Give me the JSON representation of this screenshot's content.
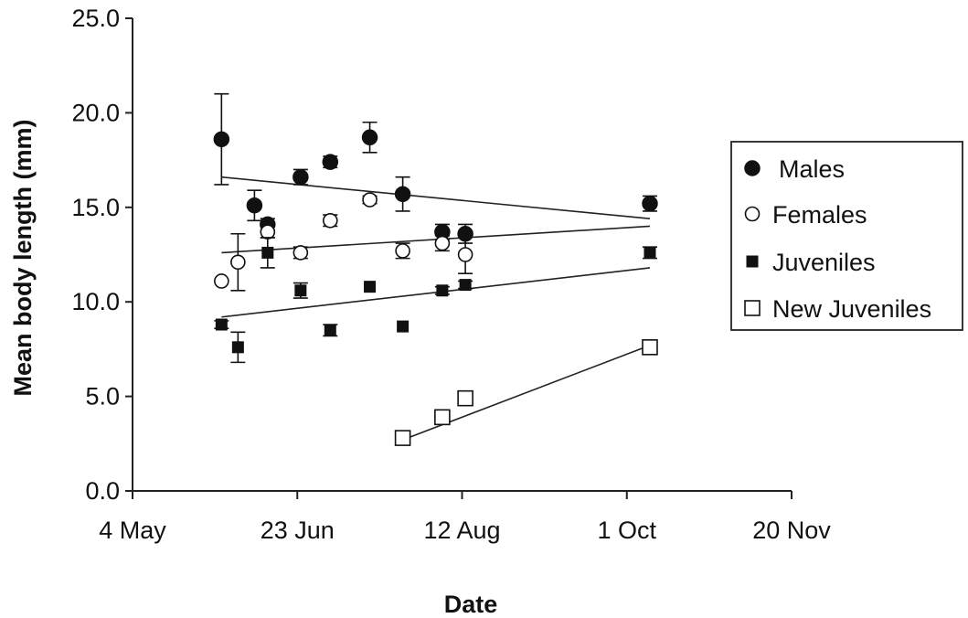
{
  "chart_data": {
    "type": "scatter",
    "xlabel": "Date",
    "ylabel": "Mean body length (mm)",
    "x_ticks": [
      "4 May",
      "23 Jun",
      "12 Aug",
      "1 Oct",
      "20 Nov"
    ],
    "y_ticks": [
      "0.0",
      "5.0",
      "10.0",
      "15.0",
      "20.0",
      "25.0"
    ],
    "x_tick_dates": [
      "May 4",
      "Jun 23",
      "Aug 12",
      "Oct 1",
      "Nov 20"
    ],
    "xlim": [
      "May 4",
      "Nov 20"
    ],
    "ylim": [
      0,
      25
    ],
    "legend_position": "right",
    "series": [
      {
        "name": "Males",
        "marker": "filled-circle",
        "points": [
          {
            "x": "May 31",
            "y": 18.6,
            "err": 2.4
          },
          {
            "x": "Jun 10",
            "y": 15.1,
            "err": 0.8
          },
          {
            "x": "Jun 14",
            "y": 14.1,
            "err": 0.3
          },
          {
            "x": "Jun 24",
            "y": 16.6,
            "err": 0.4
          },
          {
            "x": "Jul 3",
            "y": 17.4,
            "err": 0.3
          },
          {
            "x": "Jul 15",
            "y": 18.7,
            "err": 0.8
          },
          {
            "x": "Jul 25",
            "y": 15.7,
            "err": 0.9
          },
          {
            "x": "Aug 6",
            "y": 13.7,
            "err": 0.4
          },
          {
            "x": "Aug 13",
            "y": 13.6,
            "err": 0.5
          },
          {
            "x": "Oct 8",
            "y": 15.2,
            "err": 0.4
          }
        ],
        "trend": [
          {
            "x": "May 31",
            "y": 16.6
          },
          {
            "x": "Oct 8",
            "y": 14.4
          }
        ]
      },
      {
        "name": "Females",
        "marker": "open-circle",
        "points": [
          {
            "x": "May 31",
            "y": 11.1,
            "err": 0
          },
          {
            "x": "Jun 5",
            "y": 12.1,
            "err": 1.5
          },
          {
            "x": "Jun 14",
            "y": 13.7,
            "err": 0.3
          },
          {
            "x": "Jun 24",
            "y": 12.6,
            "err": 0.3
          },
          {
            "x": "Jul 3",
            "y": 14.3,
            "err": 0.3
          },
          {
            "x": "Jul 15",
            "y": 15.4,
            "err": 0.2
          },
          {
            "x": "Jul 25",
            "y": 12.7,
            "err": 0.4
          },
          {
            "x": "Aug 6",
            "y": 13.1,
            "err": 0.4
          },
          {
            "x": "Aug 13",
            "y": 12.5,
            "err": 1.0
          }
        ],
        "trend": [
          {
            "x": "May 31",
            "y": 12.6
          },
          {
            "x": "Oct 8",
            "y": 14.0
          }
        ]
      },
      {
        "name": "Juveniles",
        "marker": "filled-square",
        "points": [
          {
            "x": "May 31",
            "y": 8.8,
            "err": 0.2
          },
          {
            "x": "Jun 5",
            "y": 7.6,
            "err": 0.8
          },
          {
            "x": "Jun 14",
            "y": 12.6,
            "err": 0.8
          },
          {
            "x": "Jun 24",
            "y": 10.6,
            "err": 0.4
          },
          {
            "x": "Jul 3",
            "y": 8.5,
            "err": 0.3
          },
          {
            "x": "Jul 15",
            "y": 10.8,
            "err": 0.1
          },
          {
            "x": "Jul 25",
            "y": 8.7,
            "err": 0.1
          },
          {
            "x": "Aug 6",
            "y": 10.6,
            "err": 0.2
          },
          {
            "x": "Aug 13",
            "y": 10.9,
            "err": 0.2
          },
          {
            "x": "Oct 8",
            "y": 12.6,
            "err": 0.3
          }
        ],
        "trend": [
          {
            "x": "May 31",
            "y": 9.2
          },
          {
            "x": "Oct 8",
            "y": 11.8
          }
        ]
      },
      {
        "name": "New Juveniles",
        "marker": "open-square",
        "points": [
          {
            "x": "Jul 25",
            "y": 2.8,
            "err": 0.2
          },
          {
            "x": "Aug 6",
            "y": 3.9,
            "err": 0.2
          },
          {
            "x": "Aug 13",
            "y": 4.9,
            "err": 0.3
          },
          {
            "x": "Oct 8",
            "y": 7.6,
            "err": 0.1
          }
        ],
        "trend": [
          {
            "x": "Jul 25",
            "y": 2.7
          },
          {
            "x": "Oct 8",
            "y": 7.7
          }
        ]
      }
    ]
  }
}
